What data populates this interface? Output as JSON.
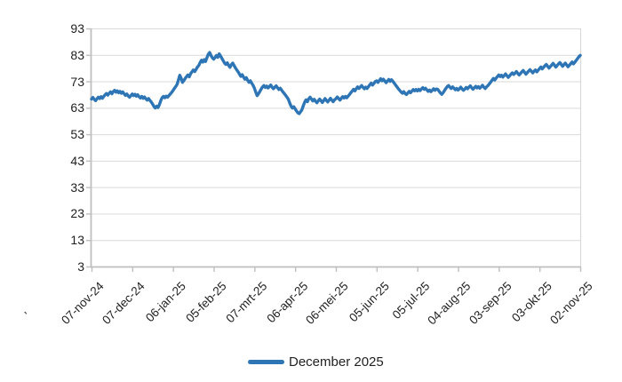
{
  "chart_data": {
    "type": "line",
    "title": "",
    "xlabel": "",
    "ylabel": "",
    "grid": true,
    "legend_position": "bottom-center",
    "colors": {
      "series_blue": "#2E75B6",
      "gridline": "#D9D9D9",
      "axis_line": "#BFBFBF",
      "tick_text": "#1F1F1F",
      "background": "#FFFFFF"
    },
    "y_axis": {
      "range": [
        3,
        93
      ],
      "ticks": [
        93,
        83,
        73,
        63,
        53,
        43,
        33,
        23,
        13,
        3
      ]
    },
    "x_axis": {
      "tick_labels": [
        "07-nov-24",
        "07-dec-24",
        "06-jan-25",
        "05-feb-25",
        "07-mrt-25",
        "06-apr-25",
        "06-mei-25",
        "05-jun-25",
        "05-jul-25",
        "04-aug-25",
        "03-sep-25",
        "03-okt-25",
        "02-nov-25"
      ],
      "tick_positions_days": [
        0,
        30,
        60,
        90,
        120,
        150,
        180,
        210,
        240,
        270,
        300,
        330,
        360
      ],
      "total_days": 360,
      "partial_clipped_label": "’",
      "label_rotation_deg": 45
    },
    "legend": {
      "entries": [
        {
          "label": "December 2025",
          "color": "#2E75B6"
        }
      ]
    },
    "series": [
      {
        "name": "December 2025",
        "color": "#2E75B6",
        "x_unit": "days_since_07-nov-24",
        "values": [
          66.3,
          66.9,
          66.2,
          65.7,
          66.4,
          67.0,
          66.5,
          67.2,
          66.6,
          67.3,
          67.9,
          68.4,
          67.8,
          68.5,
          69.0,
          68.3,
          69.1,
          69.6,
          68.9,
          69.4,
          68.7,
          69.2,
          68.5,
          69.0,
          68.3,
          67.7,
          68.2,
          67.5,
          67.0,
          67.6,
          68.2,
          67.6,
          68.1,
          67.4,
          67.9,
          67.2,
          66.7,
          67.3,
          66.6,
          67.1,
          66.4,
          65.9,
          66.5,
          65.8,
          65.2,
          64.4,
          63.5,
          62.9,
          63.6,
          63.1,
          64.2,
          65.7,
          66.8,
          67.3,
          66.8,
          67.4,
          67.0,
          67.6,
          68.2,
          68.8,
          69.5,
          70.3,
          71.0,
          71.8,
          73.5,
          75.3,
          74.2,
          72.6,
          73.3,
          74.1,
          74.8,
          75.4,
          74.7,
          75.9,
          76.6,
          77.3,
          76.7,
          77.5,
          78.4,
          79.0,
          80.1,
          81.0,
          80.3,
          81.2,
          80.5,
          81.9,
          83.2,
          83.9,
          82.8,
          81.9,
          81.4,
          82.0,
          82.8,
          82.1,
          83.4,
          82.6,
          81.7,
          80.8,
          79.9,
          79.4,
          80.0,
          79.0,
          78.3,
          79.3,
          79.9,
          79.0,
          78.1,
          77.3,
          76.6,
          75.7,
          74.9,
          75.5,
          74.6,
          73.8,
          74.4,
          73.4,
          72.6,
          73.2,
          72.3,
          71.5,
          70.4,
          68.9,
          67.6,
          68.3,
          69.2,
          70.1,
          70.9,
          71.4,
          70.7,
          71.2,
          70.5,
          71.0,
          71.6,
          70.8,
          70.2,
          70.8,
          71.3,
          70.6,
          69.9,
          70.4,
          69.7,
          69.0,
          68.4,
          67.7,
          67.0,
          66.2,
          64.8,
          63.6,
          62.9,
          63.4,
          62.6,
          61.8,
          61.1,
          60.8,
          61.5,
          62.3,
          63.8,
          65.1,
          66.0,
          65.3,
          66.4,
          67.0,
          66.3,
          65.6,
          66.2,
          65.5,
          64.9,
          65.6,
          66.3,
          65.7,
          65.0,
          65.7,
          66.5,
          65.8,
          65.2,
          65.9,
          66.6,
          65.9,
          65.3,
          66.0,
          66.4,
          67.1,
          66.5,
          65.9,
          66.6,
          67.2,
          66.7,
          67.3,
          66.8,
          67.4,
          68.0,
          68.7,
          69.3,
          70.0,
          69.4,
          70.2,
          70.9,
          70.3,
          70.9,
          71.4,
          70.7,
          70.2,
          70.8,
          70.3,
          71.0,
          71.7,
          72.3,
          71.6,
          72.2,
          72.9,
          73.2,
          72.6,
          73.3,
          74.0,
          73.2,
          73.8,
          73.1,
          72.5,
          73.1,
          73.7,
          73.0,
          73.6,
          73.0,
          72.3,
          71.6,
          70.9,
          70.2,
          69.6,
          69.0,
          68.5,
          69.1,
          68.4,
          68.0,
          68.6,
          69.2,
          68.7,
          69.3,
          69.9,
          69.4,
          69.9,
          69.4,
          70.0,
          69.5,
          70.1,
          70.6,
          70.0,
          70.4,
          69.8,
          69.2,
          69.7,
          69.1,
          69.6,
          70.2,
          69.6,
          70.1,
          70.0,
          69.3,
          68.6,
          68.1,
          68.7,
          69.5,
          70.3,
          71.0,
          71.4,
          70.8,
          70.3,
          70.9,
          70.4,
          69.8,
          70.3,
          69.7,
          70.2,
          70.8,
          70.1,
          69.6,
          70.1,
          70.7,
          70.2,
          70.8,
          71.3,
          70.6,
          70.0,
          70.6,
          71.1,
          70.5,
          71.0,
          70.4,
          70.9,
          71.5,
          70.8,
          70.3,
          70.9,
          71.4,
          72.0,
          72.7,
          73.4,
          74.1,
          73.5,
          74.2,
          74.8,
          75.4,
          74.8,
          75.3,
          74.6,
          75.2,
          75.8,
          75.1,
          74.5,
          75.1,
          75.7,
          76.2,
          75.6,
          76.1,
          76.7,
          76.0,
          75.4,
          76.0,
          76.6,
          77.1,
          76.4,
          75.7,
          76.3,
          76.9,
          77.4,
          76.8,
          76.2,
          76.8,
          77.3,
          76.6,
          77.2,
          77.8,
          78.4,
          77.7,
          78.3,
          78.9,
          79.4,
          78.7,
          78.0,
          78.6,
          79.2,
          79.8,
          79.1,
          78.4,
          79.0,
          79.6,
          80.1,
          79.4,
          78.7,
          79.3,
          79.9,
          79.2,
          78.5,
          79.1,
          79.7,
          80.3,
          79.6,
          80.2,
          80.9,
          81.6,
          82.3,
          82.8
        ]
      }
    ]
  }
}
